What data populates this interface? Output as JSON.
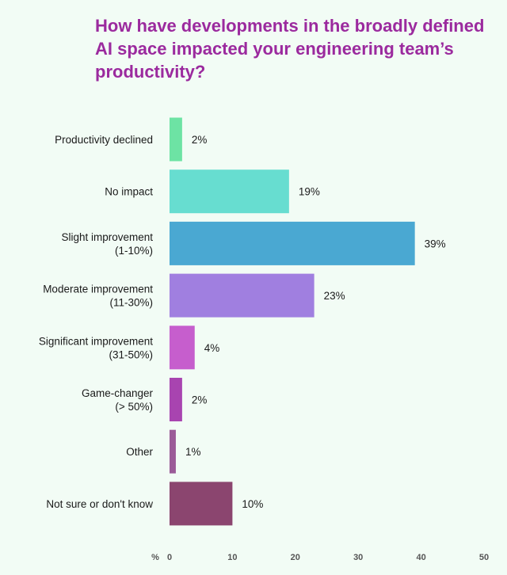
{
  "chart_data": {
    "type": "bar",
    "orientation": "horizontal",
    "title": "How have developments in the broadly defined AI space impacted your engineering team’s productivity?",
    "categories": [
      [
        "Productivity declined"
      ],
      [
        "No impact"
      ],
      [
        "Slight improvement",
        "(1-10%)"
      ],
      [
        "Moderate improvement",
        "(11-30%)"
      ],
      [
        "Significant improvement",
        "(31-50%)"
      ],
      [
        "Game-changer",
        "(> 50%)"
      ],
      [
        "Other"
      ],
      [
        "Not sure or don't know"
      ]
    ],
    "values": [
      2,
      19,
      39,
      23,
      4,
      2,
      1,
      10
    ],
    "value_labels": [
      "2%",
      "19%",
      "39%",
      "23%",
      "4%",
      "2%",
      "1%",
      "10%"
    ],
    "colors": [
      "#6de3a4",
      "#67ddd0",
      "#4aa8d2",
      "#a07fe0",
      "#c65ecd",
      "#a844b0",
      "#9b5b98",
      "#8b456f"
    ],
    "xlabel": "%",
    "xlim": [
      0,
      50
    ],
    "xticks": [
      0,
      10,
      20,
      30,
      40,
      50
    ],
    "grid": false
  }
}
